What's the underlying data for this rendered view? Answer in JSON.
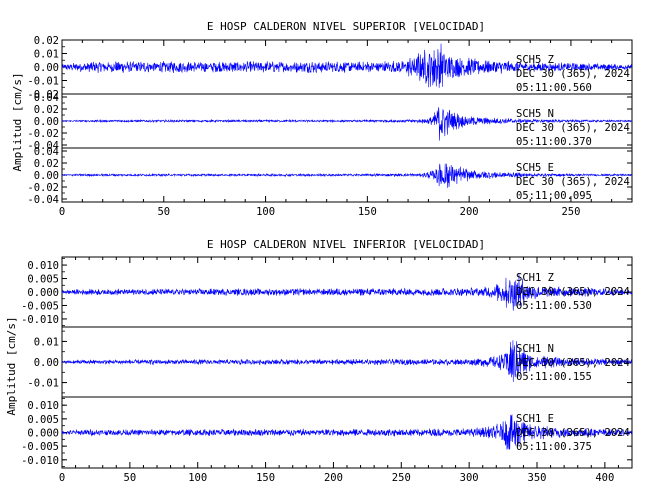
{
  "chart_data": [
    {
      "type": "line",
      "title": "E HOSP CALDERON NIVEL SUPERIOR [VELOCIDAD]",
      "ylabel": "Amplitud [cm/s]",
      "xlabel": "",
      "xlim": [
        0,
        280
      ],
      "x_ticks": [
        0,
        50,
        100,
        150,
        200,
        250
      ],
      "grid": false,
      "panels": [
        {
          "name": "SCH5 Z",
          "station_label": "SCH5   Z",
          "date_label": "DEC 30 (365), 2024",
          "time_label": "05:11:00.560",
          "ylim": [
            -0.02,
            0.02
          ],
          "y_ticks": [
            0.02,
            0.01,
            0.0,
            -0.01,
            -0.02
          ],
          "y_tick_labels": [
            "0.02",
            "0.01",
            "0.00",
            "-0.01",
            "-0.02"
          ],
          "x": [
            0,
            12,
            40,
            80,
            120,
            150,
            168,
            172,
            176,
            180,
            183,
            186,
            189,
            195,
            205,
            220,
            240,
            260,
            280
          ],
          "envelope": [
            0.002,
            0.0045,
            0.0045,
            0.0045,
            0.0045,
            0.0045,
            0.005,
            0.009,
            0.012,
            0.016,
            0.02,
            0.018,
            0.012,
            0.008,
            0.006,
            0.0045,
            0.0035,
            0.003,
            0.002
          ]
        },
        {
          "name": "SCH5 N",
          "station_label": "SCH5   N",
          "date_label": "DEC 30 (365), 2024",
          "time_label": "05:11:00.370",
          "ylim": [
            -0.045,
            0.045
          ],
          "y_ticks": [
            0.04,
            0.02,
            0.0,
            -0.02,
            -0.04
          ],
          "y_tick_labels": [
            "0.04",
            "0.02",
            "0.00",
            "-0.02",
            "-0.04"
          ],
          "x": [
            0,
            12,
            80,
            150,
            175,
            182,
            185,
            188,
            192,
            198,
            210,
            230,
            260,
            280
          ],
          "envelope": [
            0.001,
            0.002,
            0.002,
            0.002,
            0.003,
            0.008,
            0.04,
            0.03,
            0.018,
            0.01,
            0.006,
            0.003,
            0.002,
            0.0015
          ]
        },
        {
          "name": "SCH5 E",
          "station_label": "SCH5   E",
          "date_label": "DEC 30 (365), 2024",
          "time_label": "05:11:00.095",
          "ylim": [
            -0.045,
            0.045
          ],
          "y_ticks": [
            0.04,
            0.02,
            0.0,
            -0.02,
            -0.04
          ],
          "y_tick_labels": [
            "0.04",
            "0.02",
            "0.00",
            "-0.02",
            "-0.04"
          ],
          "x": [
            0,
            12,
            80,
            150,
            176,
            183,
            186,
            189,
            193,
            200,
            212,
            232,
            260,
            280
          ],
          "envelope": [
            0.001,
            0.002,
            0.002,
            0.002,
            0.003,
            0.01,
            0.035,
            0.028,
            0.018,
            0.01,
            0.006,
            0.003,
            0.002,
            0.0015
          ]
        }
      ]
    },
    {
      "type": "line",
      "title": "E HOSP CALDERON NIVEL INFERIOR [VELOCIDAD]",
      "ylabel": "Amplitud [cm/s]",
      "xlabel": "",
      "xlim": [
        0,
        420
      ],
      "x_ticks": [
        0,
        50,
        100,
        150,
        200,
        250,
        300,
        350,
        400
      ],
      "grid": false,
      "panels": [
        {
          "name": "SCH1 Z",
          "station_label": "SCH1   Z",
          "date_label": "DEC 30 (365), 2024",
          "time_label": "05:11:00.530",
          "ylim": [
            -0.013,
            0.013
          ],
          "y_ticks": [
            0.01,
            0.005,
            0.0,
            -0.005,
            -0.01
          ],
          "y_tick_labels": [
            "0.010",
            "0.005",
            "0.000",
            "-0.005",
            "-0.010"
          ],
          "x": [
            0,
            12,
            100,
            200,
            300,
            318,
            326,
            331,
            334,
            338,
            345,
            360,
            390,
            420
          ],
          "envelope": [
            0.0006,
            0.0012,
            0.0013,
            0.0014,
            0.0016,
            0.0025,
            0.005,
            0.011,
            0.008,
            0.006,
            0.0035,
            0.0022,
            0.0016,
            0.0012
          ]
        },
        {
          "name": "SCH1 N",
          "station_label": "SCH1   N",
          "date_label": "DEC 30 (365), 2024",
          "time_label": "05:11:00.155",
          "ylim": [
            -0.017,
            0.017
          ],
          "y_ticks": [
            0.01,
            0.0,
            -0.01
          ],
          "y_tick_labels": [
            "0.01",
            "0.00",
            "-0.01"
          ],
          "x": [
            0,
            12,
            100,
            200,
            300,
            320,
            328,
            332,
            336,
            342,
            352,
            370,
            400,
            420
          ],
          "envelope": [
            0.0006,
            0.0012,
            0.0013,
            0.0014,
            0.0016,
            0.003,
            0.006,
            0.015,
            0.01,
            0.006,
            0.0035,
            0.0022,
            0.0016,
            0.0012
          ]
        },
        {
          "name": "SCH1 E",
          "station_label": "SCH1   E",
          "date_label": "DEC 30 (365), 2024",
          "time_label": "05:11:00.375",
          "ylim": [
            -0.013,
            0.013
          ],
          "y_ticks": [
            0.01,
            0.005,
            0.0,
            -0.005,
            -0.01
          ],
          "y_tick_labels": [
            "0.010",
            "0.005",
            "0.000",
            "-0.005",
            "-0.010"
          ],
          "x": [
            0,
            12,
            100,
            200,
            300,
            318,
            326,
            331,
            334,
            338,
            345,
            360,
            390,
            420
          ],
          "envelope": [
            0.0006,
            0.0012,
            0.0013,
            0.0014,
            0.0016,
            0.0025,
            0.005,
            0.011,
            0.008,
            0.006,
            0.0035,
            0.0022,
            0.0016,
            0.0012
          ]
        }
      ]
    }
  ],
  "colors": {
    "trace": "#0000ff",
    "axis": "#000000",
    "background": "#ffffff"
  }
}
